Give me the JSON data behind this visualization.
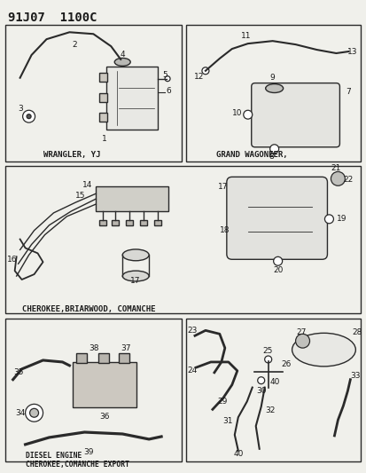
{
  "title": "91J07  1100C",
  "bg_color": "#f0f0eb",
  "border_color": "#2a2a2a",
  "text_color": "#1a1a1a",
  "panel_labels": {
    "wrangler": "WRANGLER, YJ",
    "grand_wagoneer": "GRAND WAGONEER,",
    "cherokee": "CHEROKEE,BRIARWOOD, COMANCHE",
    "diesel": "DIESEL ENGINE\nCHEROKEE,COMANCHE EXPORT"
  }
}
